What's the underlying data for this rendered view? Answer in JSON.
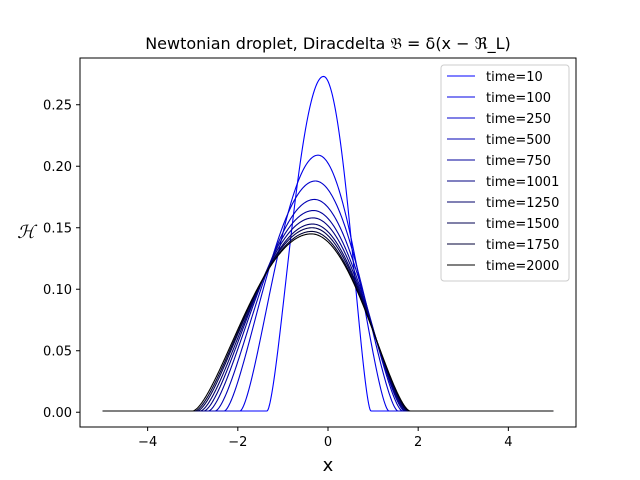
{
  "chart_data": {
    "type": "line",
    "title": "Newtonian droplet, Diracdelta 𝔅 = δ(x − ℜ_L)",
    "xlabel": "x",
    "ylabel": "ℋ",
    "xlim": [
      -5.5,
      5.5
    ],
    "ylim": [
      -0.012,
      0.288
    ],
    "x_ticks": [
      -4,
      -2,
      0,
      2,
      4
    ],
    "x_tick_labels": [
      "−4",
      "−2",
      "0",
      "2",
      "4"
    ],
    "y_ticks": [
      0.0,
      0.05,
      0.1,
      0.15,
      0.2,
      0.25
    ],
    "y_tick_labels": [
      "0.00",
      "0.05",
      "0.10",
      "0.15",
      "0.20",
      "0.25"
    ],
    "grid": false,
    "legend_position": "top-right",
    "baseline": 0.001,
    "x_domain": [
      -5,
      5
    ],
    "series": [
      {
        "name": "time=10",
        "color": "#0000ff",
        "peak_x": -0.1,
        "peak_y": 0.273,
        "left_x": -1.35,
        "right_x": 0.95
      },
      {
        "name": "time=100",
        "color": "#0000e6",
        "peak_x": -0.22,
        "peak_y": 0.209,
        "left_x": -1.95,
        "right_x": 1.35
      },
      {
        "name": "time=250",
        "color": "#0000cd",
        "peak_x": -0.28,
        "peak_y": 0.188,
        "left_x": -2.3,
        "right_x": 1.55
      },
      {
        "name": "time=500",
        "color": "#0000b4",
        "peak_x": -0.3,
        "peak_y": 0.173,
        "left_x": -2.5,
        "right_x": 1.65
      },
      {
        "name": "time=750",
        "color": "#00009b",
        "peak_x": -0.32,
        "peak_y": 0.164,
        "left_x": -2.65,
        "right_x": 1.7
      },
      {
        "name": "time=1001",
        "color": "#000082",
        "peak_x": -0.33,
        "peak_y": 0.158,
        "left_x": -2.75,
        "right_x": 1.73
      },
      {
        "name": "time=1250",
        "color": "#000069",
        "peak_x": -0.34,
        "peak_y": 0.153,
        "left_x": -2.83,
        "right_x": 1.76
      },
      {
        "name": "time=1500",
        "color": "#000050",
        "peak_x": -0.35,
        "peak_y": 0.15,
        "left_x": -2.9,
        "right_x": 1.78
      },
      {
        "name": "time=1750",
        "color": "#000037",
        "peak_x": -0.36,
        "peak_y": 0.147,
        "left_x": -2.95,
        "right_x": 1.8
      },
      {
        "name": "time=2000",
        "color": "#000000",
        "peak_x": -0.37,
        "peak_y": 0.145,
        "left_x": -3.0,
        "right_x": 1.82
      }
    ]
  }
}
